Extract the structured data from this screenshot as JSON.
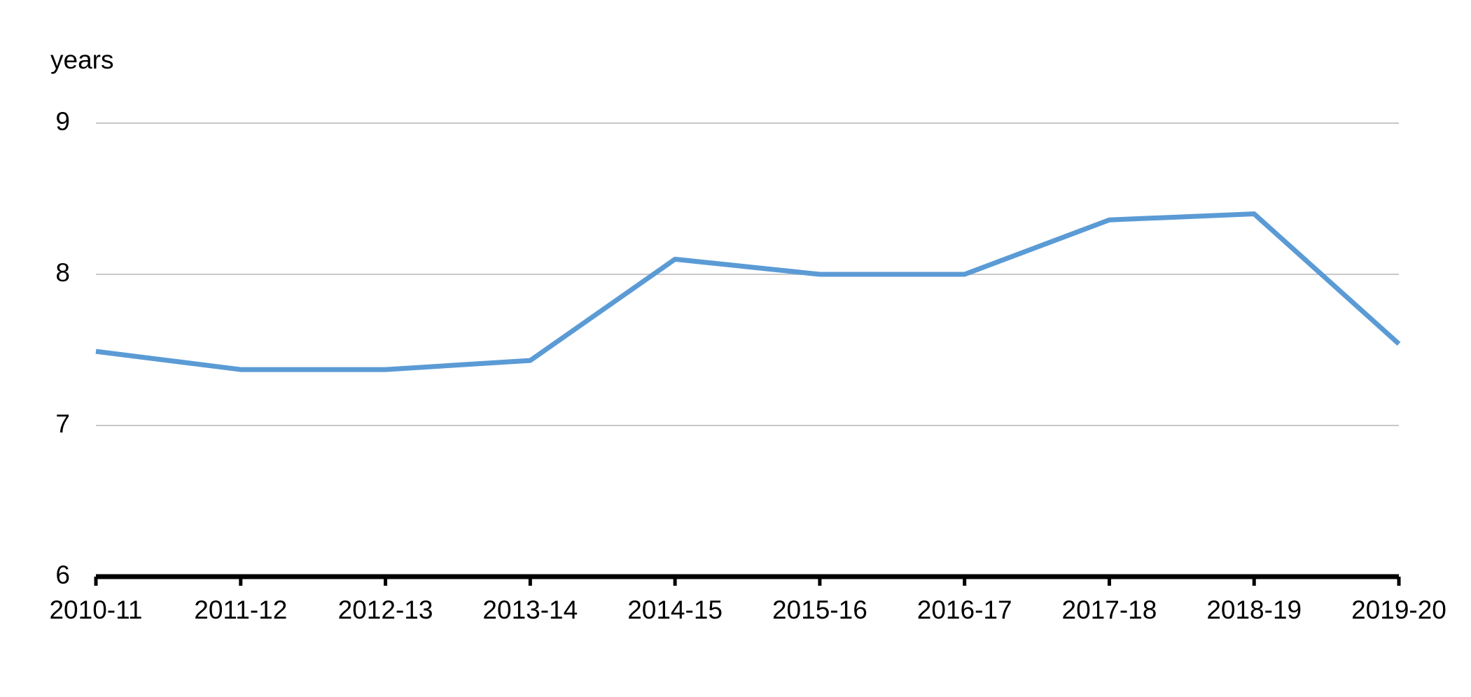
{
  "chart_data": {
    "type": "line",
    "y_label": "years",
    "categories": [
      "2010-11",
      "2011-12",
      "2012-13",
      "2013-14",
      "2014-15",
      "2015-16",
      "2016-17",
      "2017-18",
      "2018-19",
      "2019-20"
    ],
    "series": [
      {
        "color": "#5b9bd5",
        "values": [
          7.49,
          7.37,
          7.37,
          7.43,
          8.1,
          8.0,
          8.0,
          8.36,
          8.4,
          7.54
        ]
      }
    ],
    "ylim": [
      6,
      9
    ],
    "yticks": [
      6,
      7,
      8,
      9
    ],
    "grid": true
  }
}
